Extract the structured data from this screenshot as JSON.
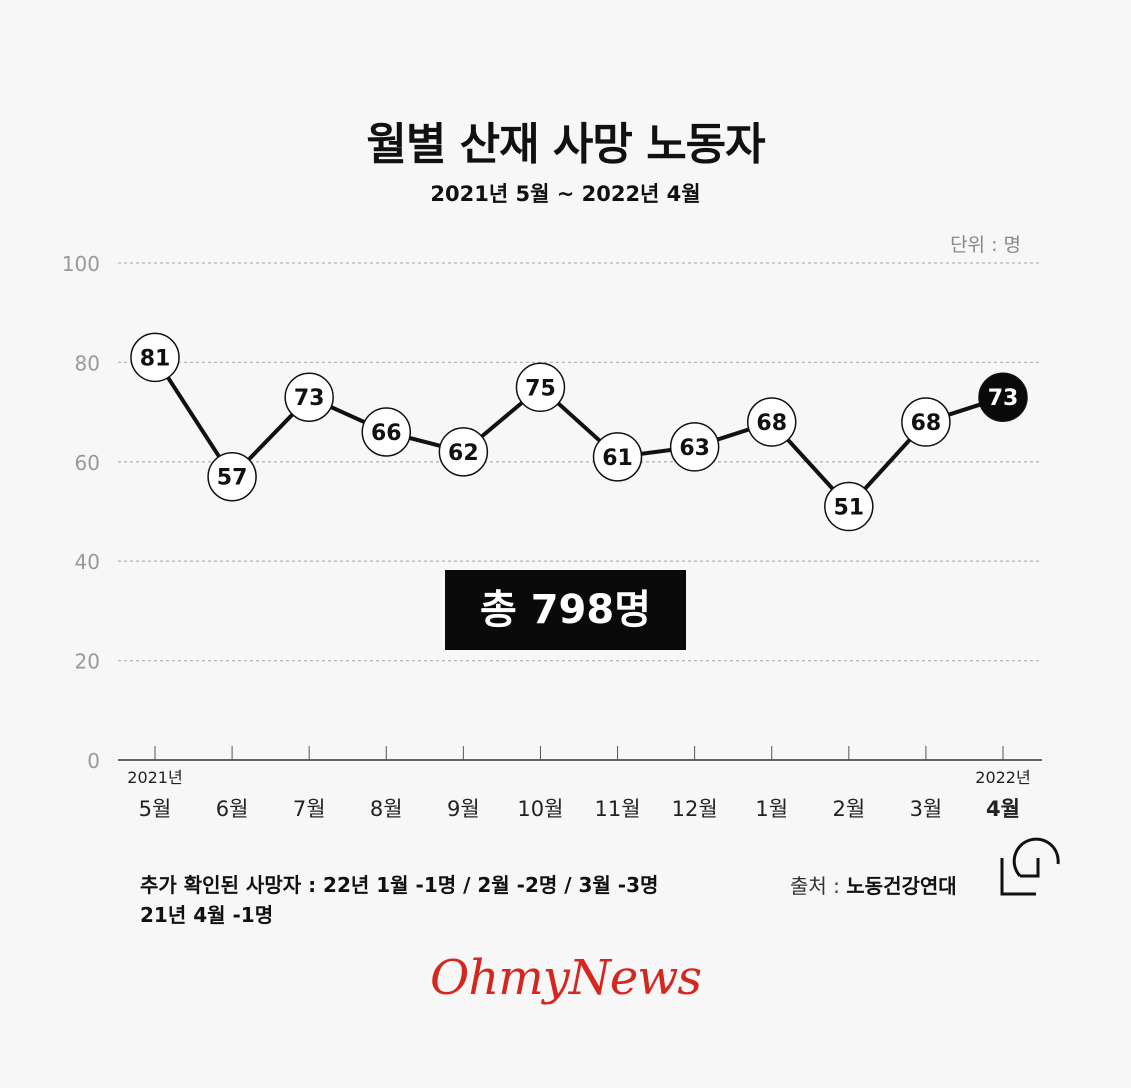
{
  "title": "월별 산재 사망 노동자",
  "subtitle": "2021년 5월 ~ 2022년 4월",
  "unit_label": "단위 : 명",
  "total_label": "총 798명",
  "footnote": {
    "line1": "추가 확인된 사망자 : 22년 1월 -1명 / 2월 -2명 / 3월 -3명",
    "line2": "21년 4월 -1명"
  },
  "source": {
    "prefix": "출처 : ",
    "name": "노동건강연대"
  },
  "brand": "OhmyNews",
  "colors": {
    "line": "#111111",
    "marker_fill": "#ffffff",
    "highlight_fill": "#0a0a0a",
    "brand": "#d3271f",
    "grid": "#b5b5b5",
    "axis_text": "#999999"
  },
  "chart_data": {
    "type": "line",
    "title": "월별 산재 사망 노동자",
    "subtitle": "2021년 5월 ~ 2022년 4월",
    "categories": [
      "5월",
      "6월",
      "7월",
      "8월",
      "9월",
      "10월",
      "11월",
      "12월",
      "1월",
      "2월",
      "3월",
      "4월"
    ],
    "year_labels": {
      "first": "2021년",
      "last": "2022년"
    },
    "values": [
      81,
      57,
      73,
      66,
      62,
      75,
      61,
      63,
      68,
      51,
      68,
      73
    ],
    "highlight_index": 11,
    "yticks": [
      0,
      20,
      40,
      60,
      80,
      100
    ],
    "ylim": [
      0,
      100
    ],
    "grid": true,
    "unit": "명",
    "total": 798
  }
}
